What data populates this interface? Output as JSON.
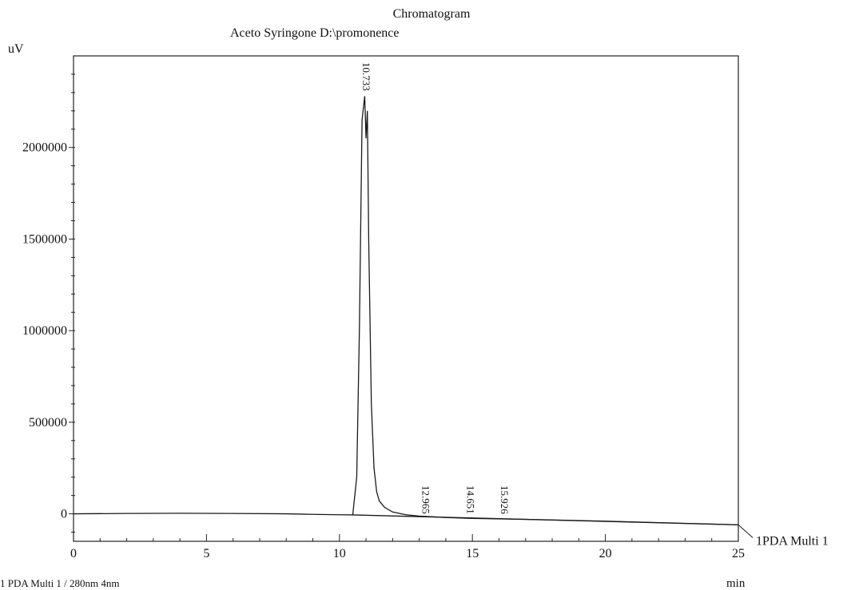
{
  "chart_data": {
    "type": "line",
    "title": "Chromatogram",
    "subtitle": "Aceto Syringone D:\\promonence",
    "ylabel": "uV",
    "xlabel": "min",
    "xlim": [
      0,
      25
    ],
    "ylim": [
      -150000,
      2500000
    ],
    "x_ticks": [
      {
        "value": 0,
        "label": "0"
      },
      {
        "value": 5,
        "label": "5"
      },
      {
        "value": 10,
        "label": "10"
      },
      {
        "value": 15,
        "label": "15"
      },
      {
        "value": 20,
        "label": "20"
      },
      {
        "value": 25,
        "label": "25"
      }
    ],
    "y_ticks": [
      {
        "value": 0,
        "label": "0"
      },
      {
        "value": 500000,
        "label": "500000"
      },
      {
        "value": 1000000,
        "label": "1000000"
      },
      {
        "value": 1500000,
        "label": "1500000"
      },
      {
        "value": 2000000,
        "label": "2000000"
      }
    ],
    "grid": false,
    "legend": {
      "placement": "right-end-of-trace",
      "entries": [
        "1PDA Multi 1"
      ]
    },
    "series": [
      {
        "name": "1PDA Multi 1",
        "x": [
          0,
          2,
          4,
          6,
          8,
          9,
          10,
          10.5,
          10.65,
          10.75,
          10.85,
          10.95,
          11.0,
          11.05,
          11.1,
          11.2,
          11.3,
          11.4,
          11.5,
          11.7,
          12,
          12.5,
          13,
          14,
          15,
          17,
          20,
          23,
          25
        ],
        "y": [
          0,
          2000,
          3000,
          2000,
          0,
          -3000,
          -5000,
          -6000,
          200000,
          1000000,
          2150000,
          2280000,
          2050000,
          2200000,
          1500000,
          600000,
          250000,
          120000,
          70000,
          35000,
          10000,
          -5000,
          -12000,
          -20000,
          -25000,
          -30000,
          -40000,
          -52000,
          -60000
        ]
      }
    ],
    "baseline": {
      "x": [
        10.5,
        25
      ],
      "y": [
        -6000,
        -60000
      ]
    },
    "peaks": [
      {
        "x": 10.733,
        "label": "10.733"
      },
      {
        "x": 12.965,
        "label": "12.965"
      },
      {
        "x": 14.651,
        "label": "14.651"
      },
      {
        "x": 15.926,
        "label": "15.926"
      }
    ],
    "footnote": "1 PDA Multi 1 / 280nm 4nm"
  }
}
